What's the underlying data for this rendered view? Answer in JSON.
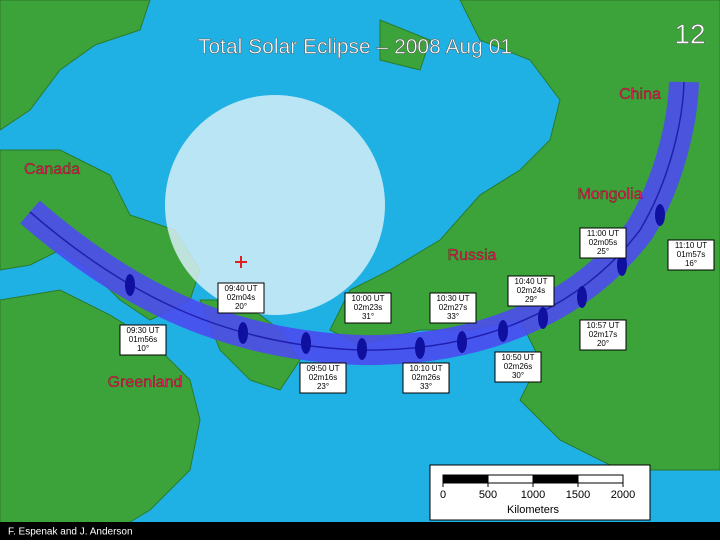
{
  "title": "Total Solar Eclipse – 2008 Aug 01",
  "slide_number": "12",
  "labels": [
    "China",
    "Canada",
    "Mongolia",
    "Russia",
    "Greenland"
  ],
  "time_boxes": [
    [
      "09:30 UT",
      "01m56s",
      "10°"
    ],
    [
      "09:40 UT",
      "02m04s",
      "20°"
    ],
    [
      "09:50 UT",
      "02m16s",
      "23°"
    ],
    [
      "10:00 UT",
      "02m23s",
      "31°"
    ],
    [
      "10:10 UT",
      "02m26s",
      "33°"
    ],
    [
      "10:30 UT",
      "02m27s",
      "33°"
    ],
    [
      "10:40 UT",
      "02m24s",
      "29°"
    ],
    [
      "10:50 UT",
      "02m26s",
      "30°"
    ],
    [
      "11:00 UT",
      "02m05s",
      "25°"
    ],
    [
      "10:57 UT",
      "02m17s",
      "20°"
    ],
    [
      "11:10 UT",
      "01m57s",
      "16°"
    ]
  ],
  "scale": {
    "ticks": [
      "0",
      "500",
      "1000",
      "1500",
      "2000"
    ],
    "unit": "Kilometers"
  },
  "credit": "F. Espenak  and  J. Anderson"
}
